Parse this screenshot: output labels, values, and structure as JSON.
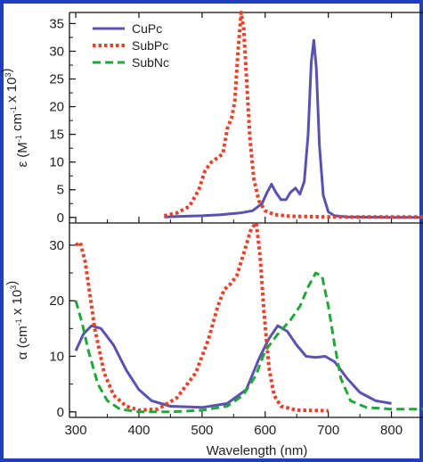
{
  "chart_data": [
    {
      "type": "line",
      "panel": "top",
      "xlabel": "",
      "ylabel": {
        "prefix": "ε (M",
        "sup1": "-1",
        "mid": " cm",
        "sup2": "-1",
        "suffix": " x 10",
        "sup3": "3",
        "end": ")"
      },
      "xlim": [
        290,
        850
      ],
      "ylim": [
        -1,
        37
      ],
      "yticks": [
        0,
        5,
        10,
        15,
        20,
        25,
        30,
        35
      ],
      "legend": {
        "position": "top-left",
        "entries": [
          "CuPc",
          "SubPc",
          "SubNc"
        ]
      },
      "series": [
        {
          "name": "CuPc",
          "color": "#5a52b0",
          "dash": "solid",
          "points": [
            [
              440,
              0.1
            ],
            [
              470,
              0.2
            ],
            [
              500,
              0.3
            ],
            [
              530,
              0.5
            ],
            [
              560,
              0.8
            ],
            [
              580,
              1.2
            ],
            [
              595,
              2.5
            ],
            [
              603,
              4.5
            ],
            [
              610,
              6.0
            ],
            [
              617,
              4.5
            ],
            [
              625,
              3.2
            ],
            [
              633,
              3.2
            ],
            [
              640,
              4.5
            ],
            [
              648,
              5.3
            ],
            [
              655,
              4.2
            ],
            [
              662,
              6.5
            ],
            [
              668,
              15.0
            ],
            [
              673,
              28.0
            ],
            [
              677,
              32.0
            ],
            [
              681,
              27.0
            ],
            [
              686,
              13.0
            ],
            [
              692,
              4.0
            ],
            [
              700,
              1.0
            ],
            [
              710,
              0.3
            ],
            [
              730,
              0.1
            ],
            [
              800,
              0.0
            ],
            [
              850,
              0.0
            ]
          ]
        },
        {
          "name": "SubPc",
          "color": "#e8412c",
          "dash": "dot",
          "points": [
            [
              440,
              0.3
            ],
            [
              460,
              0.8
            ],
            [
              480,
              2.0
            ],
            [
              495,
              5.0
            ],
            [
              505,
              8.5
            ],
            [
              515,
              10.0
            ],
            [
              525,
              10.8
            ],
            [
              533,
              11.5
            ],
            [
              540,
              16.0
            ],
            [
              547,
              18.0
            ],
            [
              552,
              21.0
            ],
            [
              557,
              30.0
            ],
            [
              562,
              37.0
            ],
            [
              566,
              34.0
            ],
            [
              570,
              26.0
            ],
            [
              576,
              14.0
            ],
            [
              582,
              7.0
            ],
            [
              590,
              3.0
            ],
            [
              600,
              1.2
            ],
            [
              615,
              0.5
            ],
            [
              640,
              0.2
            ],
            [
              700,
              0.1
            ],
            [
              850,
              0.1
            ]
          ]
        }
      ]
    },
    {
      "type": "line",
      "panel": "bottom",
      "xlabel": "Wavelength (nm)",
      "ylabel": {
        "prefix": "α (cm",
        "sup1": "-1",
        "mid": " x 10",
        "sup2": "3",
        "suffix": ")",
        "sup3": "",
        "end": ""
      },
      "xlim": [
        290,
        850
      ],
      "ylim": [
        -1,
        34
      ],
      "xticks": [
        300,
        400,
        500,
        600,
        700,
        800
      ],
      "yticks": [
        0,
        10,
        20,
        30
      ],
      "series": [
        {
          "name": "CuPc",
          "color": "#5a52b0",
          "dash": "solid",
          "points": [
            [
              300,
              11.0
            ],
            [
              312,
              14.0
            ],
            [
              325,
              15.5
            ],
            [
              340,
              15.0
            ],
            [
              360,
              12.0
            ],
            [
              380,
              7.5
            ],
            [
              400,
              4.0
            ],
            [
              420,
              2.0
            ],
            [
              450,
              1.0
            ],
            [
              500,
              0.8
            ],
            [
              540,
              1.5
            ],
            [
              570,
              4.0
            ],
            [
              590,
              9.5
            ],
            [
              605,
              13.0
            ],
            [
              620,
              15.5
            ],
            [
              635,
              14.5
            ],
            [
              650,
              12.0
            ],
            [
              665,
              10.0
            ],
            [
              680,
              9.8
            ],
            [
              695,
              10.0
            ],
            [
              710,
              9.0
            ],
            [
              730,
              6.0
            ],
            [
              750,
              3.5
            ],
            [
              775,
              2.0
            ],
            [
              800,
              1.5
            ]
          ]
        },
        {
          "name": "SubPc",
          "color": "#e8412c",
          "dash": "dot",
          "points": [
            [
              300,
              30.0
            ],
            [
              307,
              30.5
            ],
            [
              315,
              27.0
            ],
            [
              330,
              15.0
            ],
            [
              345,
              7.0
            ],
            [
              360,
              3.0
            ],
            [
              380,
              1.0
            ],
            [
              400,
              0.3
            ],
            [
              430,
              0.5
            ],
            [
              460,
              2.5
            ],
            [
              490,
              7.0
            ],
            [
              510,
              13.0
            ],
            [
              525,
              19.0
            ],
            [
              535,
              22.0
            ],
            [
              545,
              23.0
            ],
            [
              555,
              24.5
            ],
            [
              562,
              27.0
            ],
            [
              570,
              30.0
            ],
            [
              578,
              33.0
            ],
            [
              586,
              34.0
            ],
            [
              592,
              28.0
            ],
            [
              598,
              18.0
            ],
            [
              606,
              8.0
            ],
            [
              614,
              3.0
            ],
            [
              625,
              1.0
            ],
            [
              650,
              0.3
            ],
            [
              700,
              0.2
            ]
          ]
        },
        {
          "name": "SubNc",
          "color": "#21a63a",
          "dash": "dash",
          "points": [
            [
              300,
              20.0
            ],
            [
              310,
              16.0
            ],
            [
              320,
              11.0
            ],
            [
              335,
              5.0
            ],
            [
              350,
              2.0
            ],
            [
              370,
              0.5
            ],
            [
              400,
              0.0
            ],
            [
              450,
              0.0
            ],
            [
              500,
              0.3
            ],
            [
              540,
              1.0
            ],
            [
              565,
              3.0
            ],
            [
              585,
              6.5
            ],
            [
              600,
              11.0
            ],
            [
              620,
              14.0
            ],
            [
              640,
              16.5
            ],
            [
              655,
              19.0
            ],
            [
              668,
              22.5
            ],
            [
              680,
              25.0
            ],
            [
              690,
              24.5
            ],
            [
              700,
              19.0
            ],
            [
              710,
              12.0
            ],
            [
              720,
              6.0
            ],
            [
              735,
              2.0
            ],
            [
              760,
              0.8
            ],
            [
              800,
              0.5
            ],
            [
              850,
              0.5
            ]
          ]
        }
      ]
    }
  ]
}
